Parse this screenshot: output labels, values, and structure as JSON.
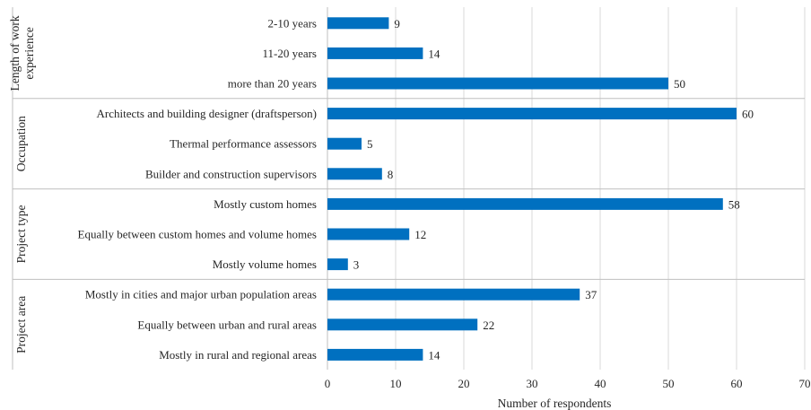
{
  "chart_data": {
    "type": "bar",
    "orientation": "horizontal",
    "xlabel": "Number of respondents",
    "xlim": [
      0,
      70
    ],
    "xticks": [
      0,
      10,
      20,
      30,
      40,
      50,
      60,
      70
    ],
    "grid": true,
    "bar_color": "#0070c0",
    "groups": [
      {
        "name": "Length of work experience",
        "name_lines": [
          "Length of work",
          "experience"
        ],
        "categories": [
          "2-10 years",
          "11-20 years",
          "more than 20 years"
        ],
        "values": [
          9,
          14,
          50
        ]
      },
      {
        "name": "Occupation",
        "name_lines": [
          "Occupation"
        ],
        "categories": [
          "Architects and building designer (draftsperson)",
          "Thermal performance assessors",
          "Builder and construction supervisors"
        ],
        "values": [
          60,
          5,
          8
        ]
      },
      {
        "name": "Project type",
        "name_lines": [
          "Project type"
        ],
        "categories": [
          "Mostly custom homes",
          "Equally between custom homes and volume homes",
          "Mostly volume homes"
        ],
        "values": [
          58,
          12,
          3
        ]
      },
      {
        "name": "Project area",
        "name_lines": [
          "Project area"
        ],
        "categories": [
          "Mostly in cities and major urban population areas",
          "Equally between urban and rural areas",
          "Mostly in rural and regional areas"
        ],
        "values": [
          37,
          22,
          14
        ]
      }
    ]
  }
}
